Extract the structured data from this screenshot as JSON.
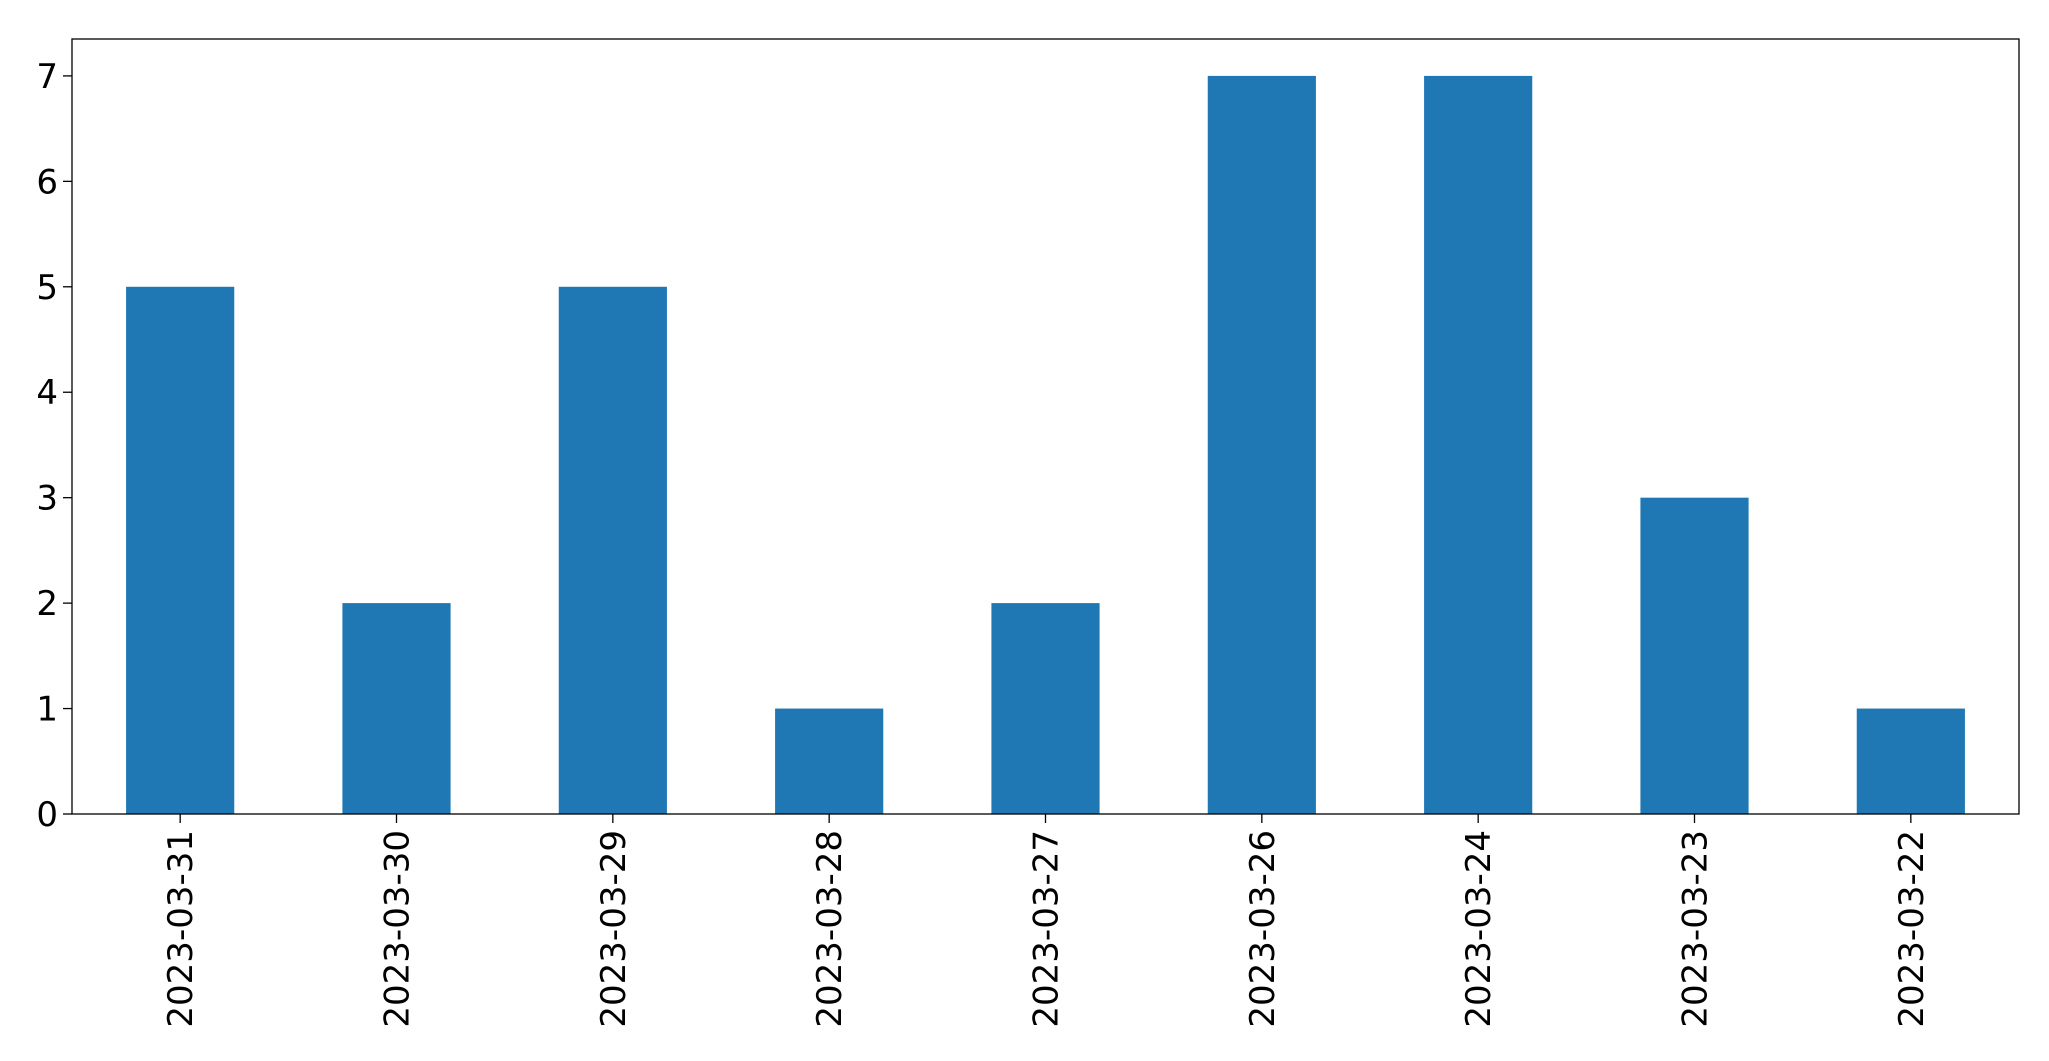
{
  "chart_data": {
    "type": "bar",
    "categories": [
      "2023-03-31",
      "2023-03-30",
      "2023-03-29",
      "2023-03-28",
      "2023-03-27",
      "2023-03-26",
      "2023-03-24",
      "2023-03-23",
      "2023-03-22"
    ],
    "values": [
      5,
      2,
      5,
      1,
      2,
      7,
      7,
      3,
      1
    ],
    "color": "#1f77b4",
    "ylim": [
      0,
      7.35
    ],
    "yticks": [
      0,
      1,
      2,
      3,
      4,
      5,
      6,
      7
    ],
    "grid": false
  }
}
